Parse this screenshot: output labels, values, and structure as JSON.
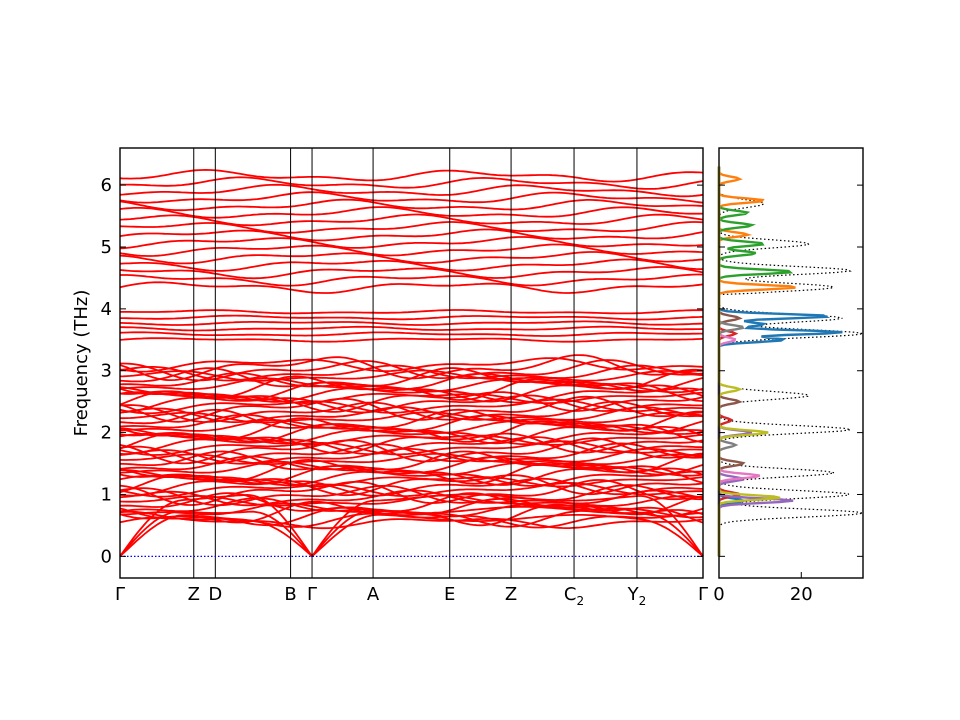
{
  "chart_data": [
    {
      "type": "line",
      "panel": "band-structure",
      "ylabel": "Frequency (THz)",
      "ylim": [
        -0.35,
        6.6
      ],
      "yticks": [
        0,
        1,
        2,
        3,
        4,
        5,
        6
      ],
      "kpoint_labels": [
        {
          "label": "Γ",
          "sub": "",
          "pos": 0.0
        },
        {
          "label": "Z",
          "sub": "",
          "pos": 0.1265
        },
        {
          "label": "D",
          "sub": "",
          "pos": 0.1635
        },
        {
          "label": "B",
          "sub": "",
          "pos": 0.2926
        },
        {
          "label": "Γ",
          "sub": "",
          "pos": 0.3294
        },
        {
          "label": "A",
          "sub": "",
          "pos": 0.4341
        },
        {
          "label": "E",
          "sub": "",
          "pos": 0.5656
        },
        {
          "label": "Z",
          "sub": "",
          "pos": 0.6708
        },
        {
          "label": "C",
          "sub": "2",
          "pos": 0.7788
        },
        {
          "label": "Y",
          "sub": "2",
          "pos": 0.8867
        },
        {
          "label": "Γ",
          "sub": "",
          "pos": 1.0
        }
      ],
      "series_color": "#ff0000",
      "n_bands_low_group": 54,
      "low_group_range": [
        0.0,
        3.1
      ],
      "mid_group_range": [
        3.45,
        4.0
      ],
      "high_group_range": [
        4.3,
        6.3
      ],
      "zero_line_color": "#0000ff"
    },
    {
      "type": "line",
      "panel": "phonon-dos",
      "xlim": [
        0,
        35
      ],
      "xticks": [
        0,
        20
      ],
      "ylim": [
        -0.35,
        6.6
      ],
      "series": [
        {
          "color": "#1f77b4",
          "peaks": [
            {
              "f": 0.9,
              "v": 6
            },
            {
              "f": 3.5,
              "v": 16
            },
            {
              "f": 3.62,
              "v": 30
            },
            {
              "f": 3.88,
              "v": 27
            },
            {
              "f": 3.75,
              "v": 11
            }
          ]
        },
        {
          "color": "#ff7f0e",
          "peaks": [
            {
              "f": 4.35,
              "v": 19
            },
            {
              "f": 5.2,
              "v": 7
            },
            {
              "f": 5.75,
              "v": 11
            },
            {
              "f": 6.1,
              "v": 5
            }
          ]
        },
        {
          "color": "#2ca02c",
          "peaks": [
            {
              "f": 4.6,
              "v": 18
            },
            {
              "f": 4.9,
              "v": 9
            },
            {
              "f": 5.05,
              "v": 11
            },
            {
              "f": 5.35,
              "v": 8
            },
            {
              "f": 5.55,
              "v": 7
            }
          ]
        },
        {
          "color": "#d62728",
          "peaks": [
            {
              "f": 1.0,
              "v": 5
            },
            {
              "f": 2.2,
              "v": 3
            },
            {
              "f": 3.6,
              "v": 4
            }
          ]
        },
        {
          "color": "#9467bd",
          "peaks": [
            {
              "f": 0.9,
              "v": 18
            },
            {
              "f": 1.25,
              "v": 6
            },
            {
              "f": 2.0,
              "v": 8
            }
          ]
        },
        {
          "color": "#8c564b",
          "peaks": [
            {
              "f": 1.5,
              "v": 6
            },
            {
              "f": 2.5,
              "v": 5
            },
            {
              "f": 3.85,
              "v": 5
            }
          ]
        },
        {
          "color": "#e377c2",
          "peaks": [
            {
              "f": 1.3,
              "v": 10
            },
            {
              "f": 3.5,
              "v": 4
            }
          ]
        },
        {
          "color": "#7f7f7f",
          "peaks": [
            {
              "f": 1.8,
              "v": 4
            },
            {
              "f": 3.7,
              "v": 6
            }
          ]
        },
        {
          "color": "#bcbd22",
          "peaks": [
            {
              "f": 0.95,
              "v": 15
            },
            {
              "f": 2.0,
              "v": 12
            },
            {
              "f": 2.7,
              "v": 5
            }
          ]
        }
      ],
      "total": {
        "color": "#000000",
        "style": "dotted",
        "peaks": [
          {
            "f": 0.7,
            "v": 35
          },
          {
            "f": 1.0,
            "v": 32
          },
          {
            "f": 1.35,
            "v": 28
          },
          {
            "f": 2.05,
            "v": 32
          },
          {
            "f": 2.6,
            "v": 22
          },
          {
            "f": 3.6,
            "v": 35
          },
          {
            "f": 3.85,
            "v": 30
          },
          {
            "f": 4.35,
            "v": 28
          },
          {
            "f": 4.62,
            "v": 32
          },
          {
            "f": 5.05,
            "v": 22
          },
          {
            "f": 5.7,
            "v": 11
          }
        ]
      }
    }
  ]
}
